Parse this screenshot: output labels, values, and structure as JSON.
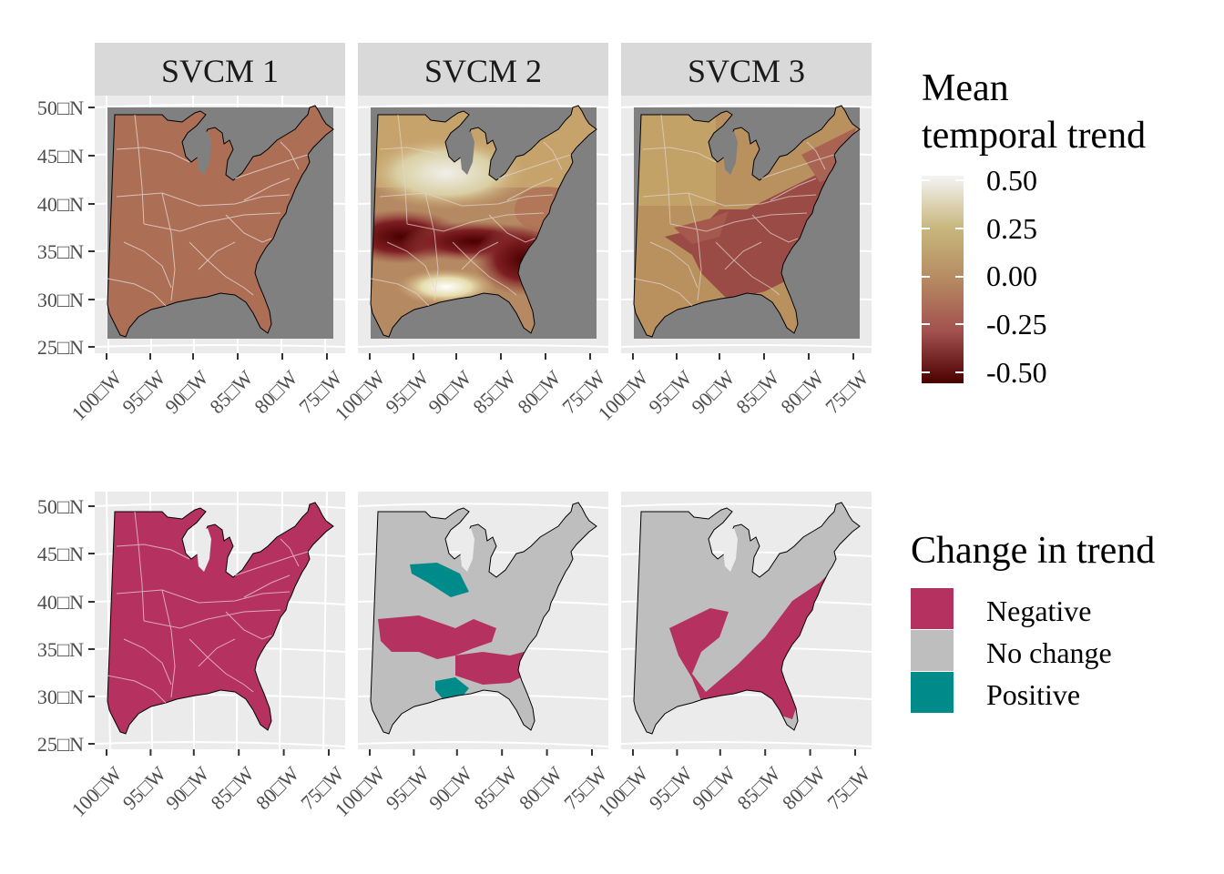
{
  "facets": [
    {
      "label": "SVCM 1"
    },
    {
      "label": "SVCM 2"
    },
    {
      "label": "SVCM 3"
    }
  ],
  "axes": {
    "lat_ticks": [
      "50□N",
      "45□N",
      "40□N",
      "35□N",
      "30□N",
      "25□N"
    ],
    "lon_ticks": [
      "100□W",
      "95□W",
      "90□W",
      "85□W",
      "80□W",
      "75□W"
    ]
  },
  "legend_continuous": {
    "title_line1": "Mean",
    "title_line2": "temporal trend",
    "breaks": [
      "0.50",
      "0.25",
      "0.00",
      "-0.25",
      "-0.50"
    ],
    "colors": {
      "high": "#f4f4f4",
      "upper": "#c8b77e",
      "mid": "#b58a62",
      "lower": "#a2514f",
      "low": "#4a0000"
    }
  },
  "legend_discrete": {
    "title": "Change in trend",
    "items": [
      {
        "label": "Negative",
        "color": "#b5315f"
      },
      {
        "label": "No change",
        "color": "#bebebe"
      },
      {
        "label": "Positive",
        "color": "#008b8b"
      }
    ]
  },
  "panel_colors": {
    "strip": "#d9d9d9",
    "panel_background": "#ebebeb",
    "grid": "#ffffff",
    "ocean": "#808080",
    "boundary": "#000000",
    "region_lines": "#dddddd",
    "lake": "#ebebeb"
  },
  "chart_data": [
    {
      "type": "choropleth-map",
      "facet": "SVCM 1",
      "row": "Mean temporal trend",
      "description_values": {
        "overall_trend": -0.1
      }
    },
    {
      "type": "choropleth-map",
      "facet": "SVCM 2",
      "row": "Mean temporal trend",
      "description_values": {
        "range": [
          -0.5,
          0.5
        ]
      }
    },
    {
      "type": "choropleth-map",
      "facet": "SVCM 3",
      "row": "Mean temporal trend",
      "description_values": {
        "range": [
          -0.35,
          0.15
        ]
      }
    },
    {
      "type": "categorical-map",
      "facet": "SVCM 1",
      "row": "Change in trend",
      "categories_present": [
        "Negative"
      ]
    },
    {
      "type": "categorical-map",
      "facet": "SVCM 2",
      "row": "Change in trend",
      "categories_present": [
        "Negative",
        "No change",
        "Positive"
      ]
    },
    {
      "type": "categorical-map",
      "facet": "SVCM 3",
      "row": "Change in trend",
      "categories_present": [
        "Negative",
        "No change"
      ]
    }
  ]
}
